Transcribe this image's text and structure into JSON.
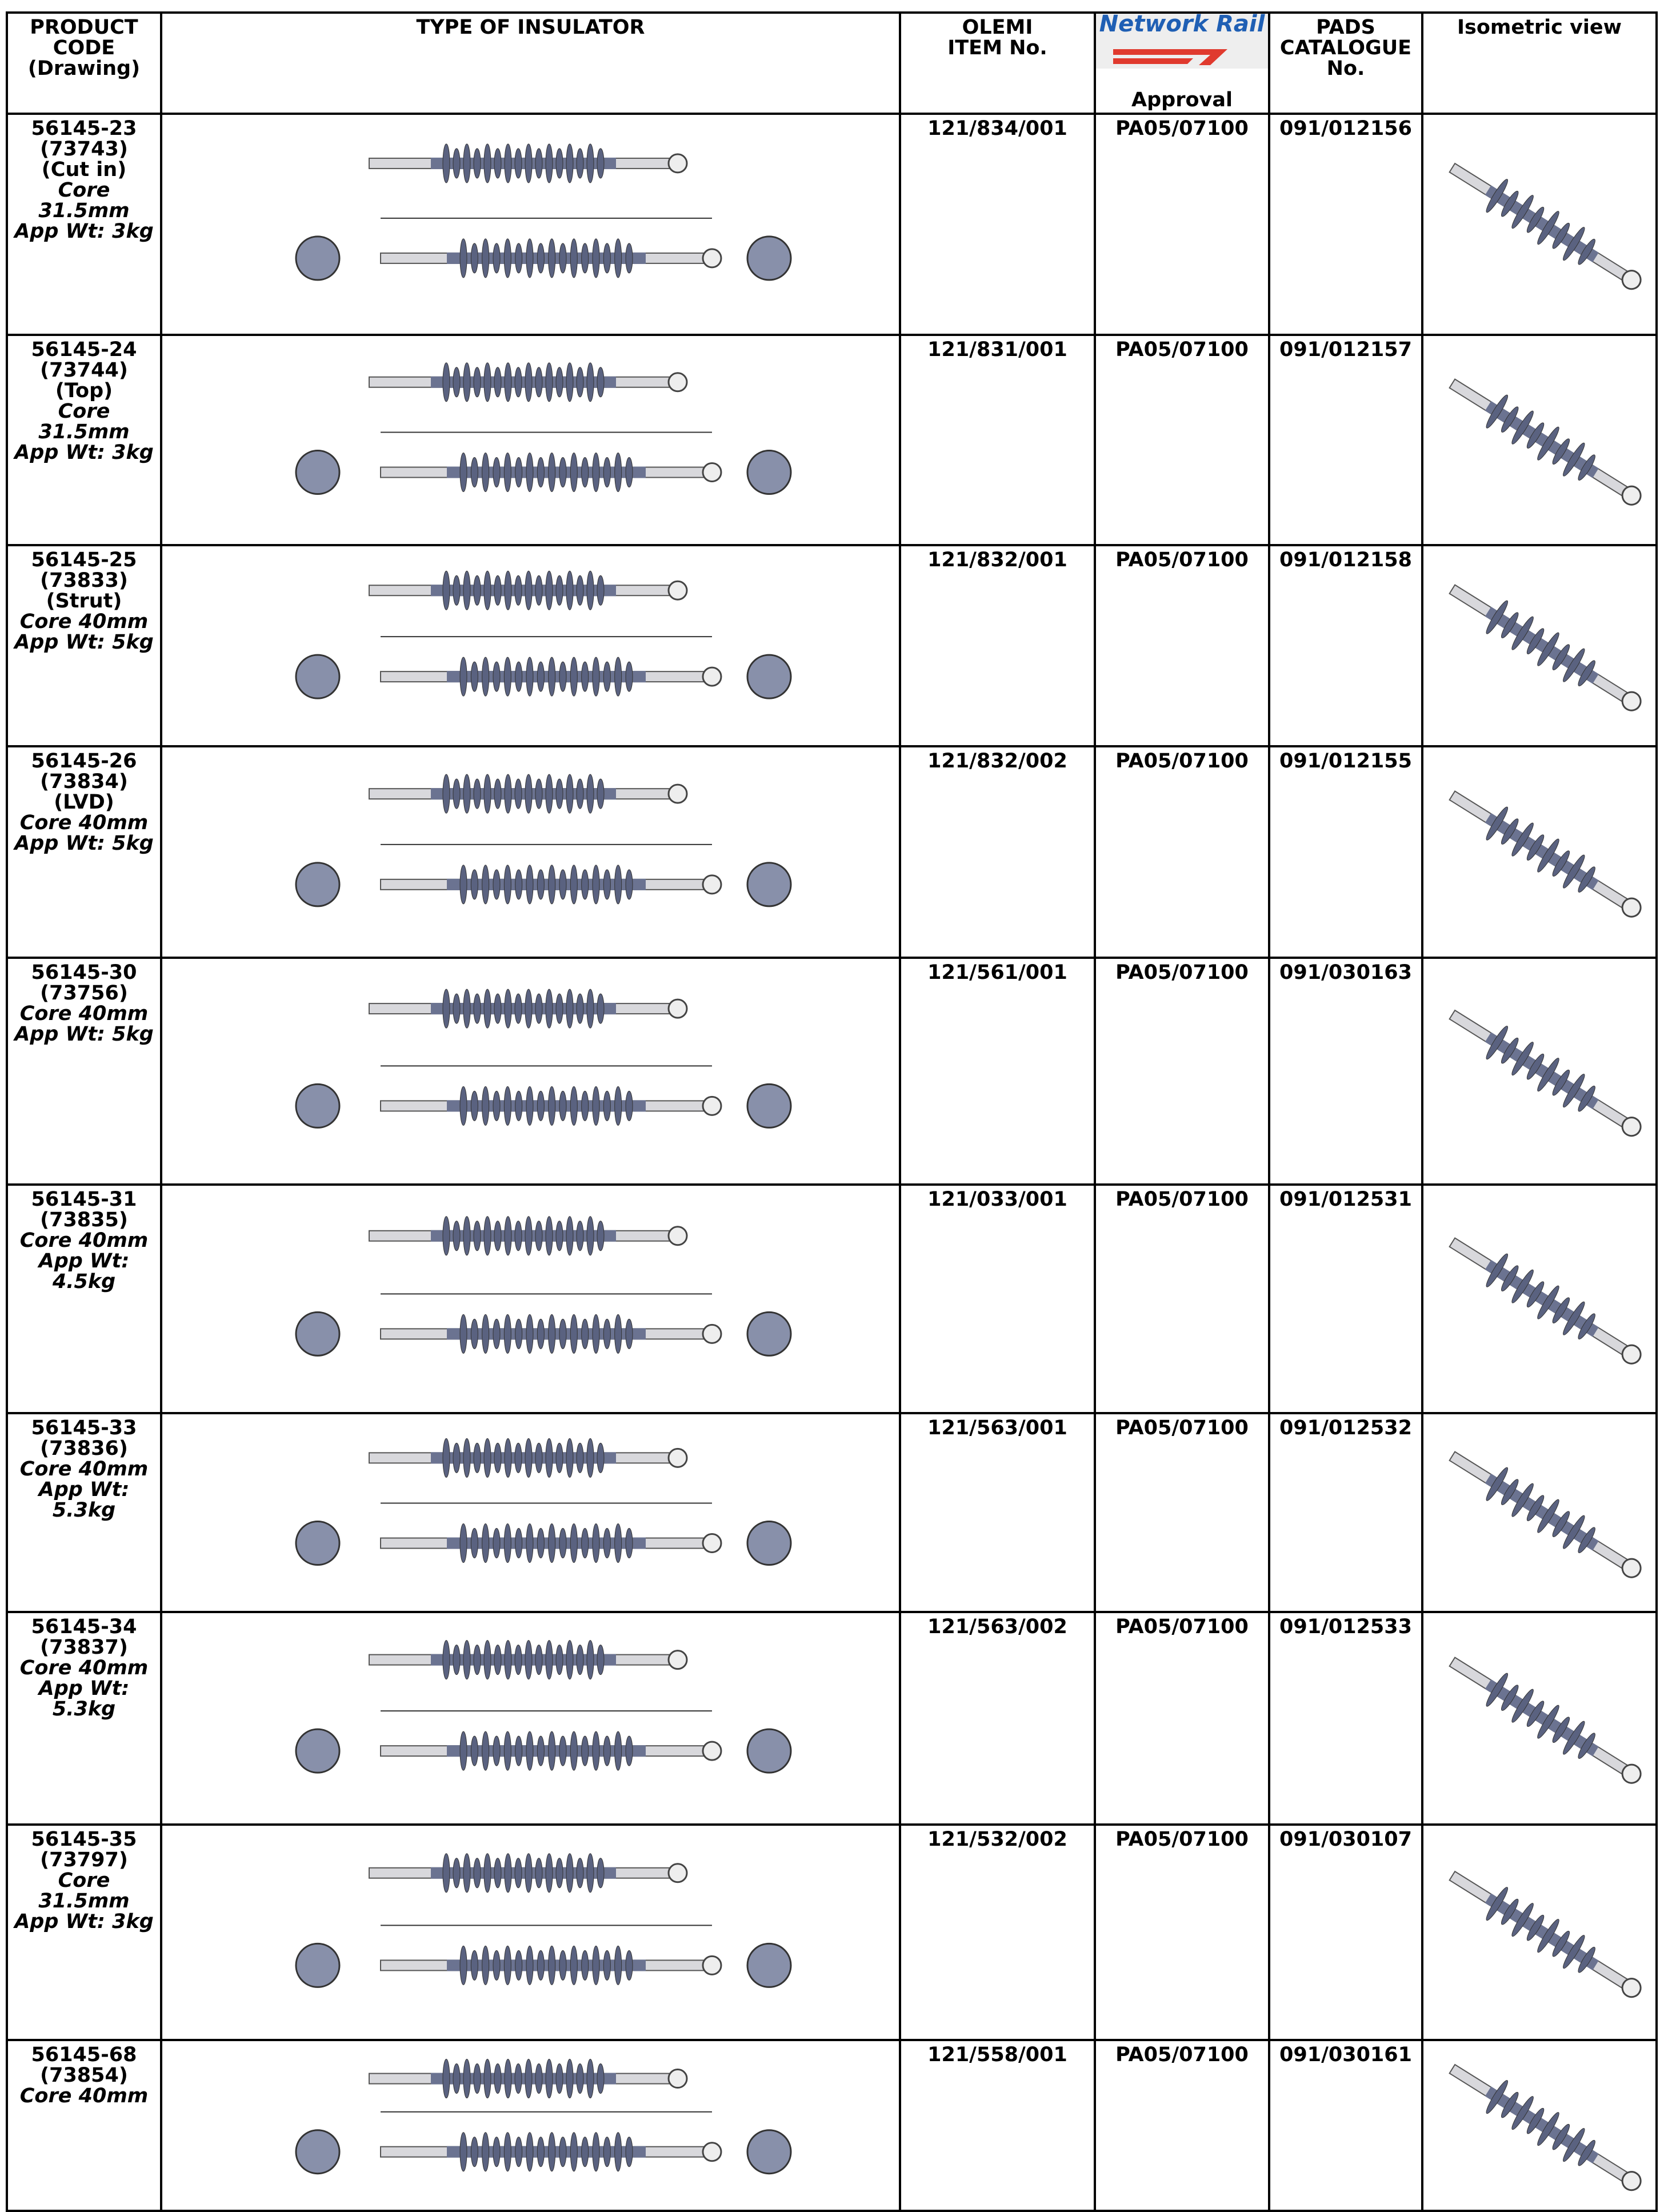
{
  "header": {
    "product_code": [
      "PRODUCT",
      "CODE",
      "(Drawing)"
    ],
    "type": "TYPE OF INSULATOR",
    "olemi": [
      "OLEMI",
      "ITEM No."
    ],
    "logo": "Network Rail",
    "approval": "Approval",
    "pads": [
      "PADS",
      "CATALOGUE",
      "No."
    ],
    "iso": "Isometric view"
  },
  "rows": [
    {
      "code": [
        "56145-23",
        "(73743)",
        "(Cut in)"
      ],
      "spec": [
        "Core 31.5mm",
        "App Wt: 3kg"
      ],
      "olemi": "121/834/001",
      "approval": "PA05/07100",
      "pads": "091/012156"
    },
    {
      "code": [
        "56145-24",
        "(73744)",
        "(Top)"
      ],
      "spec": [
        "Core 31.5mm",
        "App Wt: 3kg"
      ],
      "olemi": "121/831/001",
      "approval": "PA05/07100",
      "pads": "091/012157"
    },
    {
      "code": [
        "56145-25",
        "(73833)",
        "(Strut)"
      ],
      "spec": [
        "Core 40mm",
        "App Wt: 5kg"
      ],
      "olemi": "121/832/001",
      "approval": "PA05/07100",
      "pads": "091/012158"
    },
    {
      "code": [
        "56145-26",
        "(73834)",
        "(LVD)"
      ],
      "spec": [
        "Core 40mm",
        "App Wt: 5kg"
      ],
      "olemi": "121/832/002",
      "approval": "PA05/07100",
      "pads": "091/012155"
    },
    {
      "code": [
        "56145-30",
        "(73756)"
      ],
      "spec": [
        "Core 40mm",
        "App Wt: 5kg"
      ],
      "olemi": "121/561/001",
      "approval": "PA05/07100",
      "pads": "091/030163"
    },
    {
      "code": [
        "56145-31",
        "(73835)"
      ],
      "spec": [
        "Core 40mm",
        "App Wt:",
        "4.5kg"
      ],
      "olemi": "121/033/001",
      "approval": "PA05/07100",
      "pads": "091/012531"
    },
    {
      "code": [
        "56145-33",
        "(73836)"
      ],
      "spec": [
        "Core 40mm",
        "App Wt:",
        "5.3kg"
      ],
      "olemi": "121/563/001",
      "approval": "PA05/07100",
      "pads": "091/012532"
    },
    {
      "code": [
        "56145-34",
        "(73837)"
      ],
      "spec": [
        "Core 40mm",
        "App Wt:",
        "5.3kg"
      ],
      "olemi": "121/563/002",
      "approval": "PA05/07100",
      "pads": "091/012533"
    },
    {
      "code": [
        "56145-35",
        "(73797)"
      ],
      "spec": [
        "Core 31.5mm",
        "App Wt: 3kg"
      ],
      "olemi": "121/532/002",
      "approval": "PA05/07100",
      "pads": "091/030107"
    },
    {
      "code": [
        "56145-68",
        "(73854)"
      ],
      "spec": [
        "Core 40mm"
      ],
      "olemi": "121/558/001",
      "approval": "PA05/07100",
      "pads": "091/030161"
    }
  ]
}
